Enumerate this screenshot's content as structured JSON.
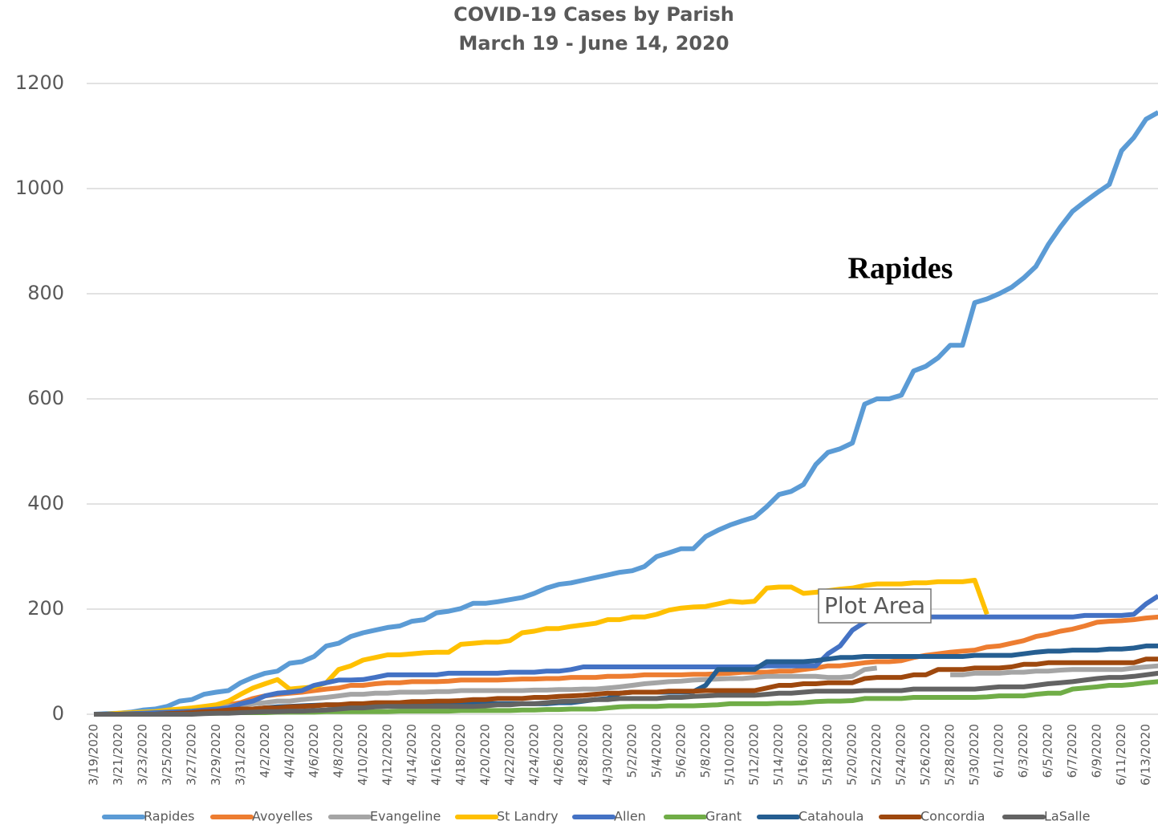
{
  "chart_data": {
    "type": "line",
    "title": "COVID-19 Cases by Parish",
    "subtitle": "March 19 - June 14, 2020",
    "annotations": [
      "Rapides",
      "Plot Area"
    ],
    "categories": [
      "3/19/2020",
      null,
      "3/21/2020",
      null,
      "3/23/2020",
      null,
      "3/25/2020",
      null,
      "3/27/2020",
      null,
      "3/29/2020",
      null,
      "3/31/2020",
      null,
      "4/2/2020",
      null,
      "4/4/2020",
      null,
      "4/6/2020",
      null,
      "4/8/2020",
      null,
      "4/10/2020",
      null,
      "4/12/2020",
      null,
      "4/14/2020",
      null,
      "4/16/2020",
      null,
      "4/18/2020",
      null,
      "4/20/2020",
      null,
      "4/22/2020",
      null,
      "4/24/2020",
      null,
      "4/26/2020",
      null,
      "4/28/2020",
      null,
      "4/30/2020",
      null,
      "5/2/2020",
      null,
      "5/4/2020",
      null,
      "5/6/2020",
      null,
      "5/8/2020",
      null,
      "5/10/2020",
      null,
      "5/12/2020",
      null,
      "5/14/2020",
      null,
      "5/16/2020",
      null,
      "5/18/2020",
      null,
      "5/20/2020",
      null,
      "5/22/2020",
      null,
      "5/24/2020",
      null,
      "5/26/2020",
      null,
      "5/28/2020",
      null,
      "5/30/2020",
      null,
      "6/1/2020",
      null,
      "6/3/2020",
      null,
      "6/5/2020",
      null,
      "6/7/2020",
      null,
      "6/9/2020",
      null,
      "6/11/2020",
      null,
      "6/13/2020",
      null
    ],
    "ylim": [
      0,
      1200
    ],
    "yticks": [
      0,
      200,
      400,
      600,
      800,
      1000,
      1200
    ],
    "grid": true,
    "legend": "bottom",
    "series": [
      {
        "name": "Rapides",
        "color": "#5b9bd5",
        "values": [
          0,
          1,
          2,
          4,
          8,
          10,
          15,
          25,
          28,
          38,
          42,
          45,
          60,
          70,
          78,
          82,
          97,
          100,
          110,
          130,
          135,
          148,
          155,
          160,
          165,
          168,
          177,
          180,
          193,
          196,
          201,
          211,
          211,
          214,
          218,
          222,
          230,
          240,
          247,
          250,
          255,
          260,
          265,
          270,
          273,
          281,
          300,
          307,
          315,
          315,
          338,
          350,
          360,
          368,
          375,
          395,
          418,
          424,
          437,
          475,
          498,
          505,
          516,
          590,
          600,
          600,
          607,
          653,
          662,
          678,
          702,
          702,
          783,
          790,
          800,
          812,
          830,
          852,
          893,
          927,
          957,
          975,
          992,
          1008,
          1072,
          1097,
          1132,
          1145
        ]
      },
      {
        "name": "Avoyelles",
        "color": "#ed7d31",
        "values": [
          0,
          0,
          0,
          1,
          2,
          3,
          5,
          8,
          10,
          12,
          15,
          18,
          22,
          30,
          35,
          38,
          40,
          42,
          45,
          48,
          50,
          55,
          55,
          58,
          60,
          60,
          62,
          62,
          62,
          63,
          65,
          65,
          65,
          65,
          66,
          67,
          67,
          68,
          68,
          70,
          70,
          70,
          72,
          72,
          73,
          75,
          75,
          75,
          75,
          76,
          76,
          77,
          78,
          80,
          80,
          80,
          82,
          82,
          85,
          88,
          92,
          92,
          95,
          98,
          100,
          100,
          102,
          108,
          112,
          115,
          118,
          120,
          122,
          128,
          130,
          135,
          140,
          148,
          152,
          158,
          162,
          168,
          175,
          177,
          178,
          180,
          183,
          185
        ]
      },
      {
        "name": "Evangeline",
        "color": "#a5a5a5",
        "values": [
          0,
          0,
          0,
          0,
          1,
          2,
          3,
          5,
          8,
          10,
          12,
          15,
          18,
          20,
          22,
          25,
          25,
          28,
          30,
          32,
          35,
          38,
          38,
          40,
          40,
          42,
          42,
          42,
          43,
          43,
          45,
          45,
          45,
          45,
          45,
          45,
          46,
          46,
          47,
          47,
          48,
          48,
          50,
          52,
          55,
          58,
          60,
          62,
          63,
          65,
          66,
          67,
          68,
          68,
          70,
          72,
          72,
          72,
          72,
          72,
          70,
          70,
          72,
          85,
          88,
          null,
          null,
          null,
          null,
          null,
          75,
          75,
          78,
          78,
          78,
          80,
          80,
          82,
          82,
          84,
          85,
          85,
          85,
          85,
          85,
          88,
          90,
          92
        ]
      },
      {
        "name": "St Landry",
        "color": "#ffc000",
        "values": [
          0,
          0,
          2,
          3,
          4,
          5,
          8,
          10,
          12,
          15,
          18,
          25,
          38,
          50,
          58,
          66,
          48,
          50,
          52,
          60,
          85,
          92,
          103,
          108,
          113,
          113,
          115,
          117,
          118,
          118,
          133,
          135,
          137,
          137,
          140,
          155,
          158,
          163,
          163,
          167,
          170,
          173,
          180,
          180,
          185,
          185,
          190,
          198,
          202,
          204,
          205,
          210,
          215,
          213,
          215,
          240,
          242,
          242,
          230,
          232,
          235,
          238,
          240,
          245,
          248,
          248,
          248,
          250,
          250,
          252,
          252,
          252,
          255,
          190,
          null,
          null,
          null,
          null,
          null,
          null,
          null,
          null,
          null,
          null,
          null,
          null,
          null,
          null
        ]
      },
      {
        "name": "Allen",
        "color": "#4472c4",
        "values": [
          0,
          0,
          0,
          1,
          2,
          3,
          4,
          5,
          6,
          8,
          10,
          12,
          20,
          25,
          35,
          40,
          42,
          45,
          55,
          60,
          65,
          65,
          66,
          70,
          75,
          75,
          75,
          75,
          75,
          78,
          78,
          78,
          78,
          78,
          80,
          80,
          80,
          82,
          82,
          85,
          90,
          90,
          90,
          90,
          90,
          90,
          90,
          90,
          90,
          90,
          90,
          90,
          90,
          90,
          90,
          92,
          92,
          92,
          92,
          92,
          115,
          130,
          160,
          175,
          185,
          185,
          185,
          185,
          185,
          185,
          185,
          185,
          185,
          185,
          185,
          185,
          185,
          185,
          185,
          185,
          185,
          188,
          188,
          188,
          188,
          190,
          210,
          225
        ]
      },
      {
        "name": "Grant",
        "color": "#70ad47",
        "values": [
          0,
          0,
          0,
          0,
          0,
          0,
          1,
          1,
          2,
          2,
          2,
          3,
          3,
          3,
          3,
          4,
          4,
          4,
          4,
          5,
          5,
          5,
          5,
          5,
          5,
          6,
          6,
          6,
          6,
          6,
          7,
          7,
          7,
          7,
          7,
          8,
          8,
          9,
          9,
          10,
          10,
          10,
          12,
          14,
          15,
          15,
          15,
          16,
          16,
          16,
          17,
          18,
          20,
          20,
          20,
          20,
          21,
          21,
          22,
          24,
          25,
          25,
          26,
          30,
          30,
          30,
          30,
          32,
          32,
          32,
          32,
          32,
          32,
          33,
          35,
          35,
          35,
          38,
          40,
          40,
          48,
          50,
          52,
          55,
          55,
          57,
          60,
          62
        ]
      },
      {
        "name": "Catahoula",
        "color": "#255e91",
        "values": [
          0,
          0,
          0,
          0,
          0,
          0,
          1,
          2,
          3,
          4,
          5,
          6,
          8,
          10,
          12,
          14,
          15,
          16,
          17,
          18,
          18,
          18,
          19,
          19,
          20,
          20,
          20,
          20,
          20,
          20,
          20,
          20,
          20,
          20,
          20,
          20,
          20,
          20,
          22,
          22,
          25,
          28,
          30,
          40,
          42,
          42,
          42,
          42,
          42,
          43,
          55,
          85,
          85,
          85,
          85,
          100,
          100,
          100,
          100,
          102,
          105,
          108,
          108,
          110,
          110,
          110,
          110,
          110,
          110,
          110,
          110,
          110,
          112,
          112,
          112,
          112,
          115,
          118,
          120,
          120,
          122,
          122,
          122,
          124,
          124,
          126,
          130,
          130
        ]
      },
      {
        "name": "Concordia",
        "color": "#9e480e",
        "values": [
          0,
          0,
          0,
          0,
          0,
          0,
          1,
          2,
          3,
          5,
          6,
          8,
          10,
          10,
          12,
          12,
          14,
          15,
          16,
          18,
          18,
          20,
          20,
          22,
          22,
          22,
          24,
          24,
          25,
          25,
          26,
          28,
          28,
          30,
          30,
          30,
          32,
          32,
          34,
          35,
          36,
          38,
          40,
          40,
          42,
          42,
          42,
          44,
          44,
          44,
          45,
          45,
          45,
          45,
          45,
          50,
          55,
          55,
          58,
          58,
          60,
          60,
          60,
          68,
          70,
          70,
          70,
          75,
          75,
          85,
          85,
          85,
          88,
          88,
          88,
          90,
          95,
          95,
          98,
          98,
          98,
          98,
          98,
          98,
          98,
          98,
          105,
          105
        ]
      },
      {
        "name": "LaSalle",
        "color": "#636363",
        "values": [
          0,
          0,
          0,
          0,
          0,
          0,
          0,
          0,
          0,
          1,
          2,
          2,
          3,
          4,
          5,
          5,
          6,
          6,
          7,
          8,
          10,
          12,
          12,
          14,
          15,
          15,
          15,
          15,
          15,
          15,
          15,
          15,
          16,
          18,
          18,
          20,
          20,
          22,
          24,
          25,
          26,
          28,
          28,
          30,
          30,
          30,
          30,
          32,
          32,
          34,
          35,
          36,
          36,
          36,
          36,
          38,
          40,
          40,
          42,
          44,
          44,
          44,
          44,
          45,
          45,
          45,
          45,
          48,
          48,
          48,
          48,
          48,
          48,
          50,
          52,
          52,
          52,
          55,
          58,
          60,
          62,
          65,
          68,
          70,
          70,
          72,
          75,
          78
        ]
      }
    ]
  }
}
